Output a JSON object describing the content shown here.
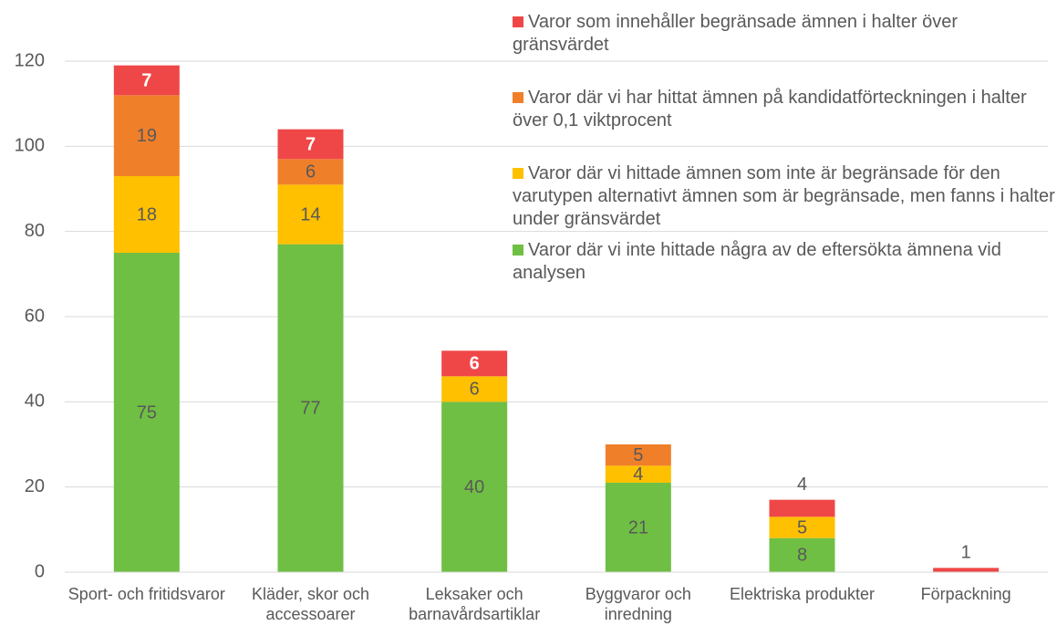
{
  "chart_data": {
    "type": "stacked_bar",
    "categories": [
      "Sport- och fritidsvaror",
      "Kläder, skor och accessoarer",
      "Leksaker och barnavårdsartiklar",
      "Byggvaror och inredning",
      "Elektriska produkter",
      "Förpackning"
    ],
    "series": [
      {
        "name": "Varor där vi inte hittade några av de eftersökta ämnena vid analysen",
        "color": "#6fbf44",
        "values": [
          75,
          77,
          40,
          21,
          8,
          null
        ]
      },
      {
        "name": "Varor där vi hittade ämnen som inte är begränsade för den varutypen alternativt ämnen som är begränsade, men fanns i halter under gränsvärdet",
        "color": "#ffc000",
        "values": [
          18,
          14,
          6,
          4,
          5,
          null
        ]
      },
      {
        "name": "Varor där vi har hittat ämnen på kandidatförteckningen i halter över 0,1 viktprocent",
        "color": "#f07f2a",
        "values": [
          19,
          6,
          null,
          5,
          null,
          null
        ]
      },
      {
        "name": "Varor som innehåller begränsade ämnen i halter över gränsvärdet",
        "color": "#ef4747",
        "values": [
          7,
          7,
          6,
          null,
          4,
          1
        ]
      }
    ],
    "ylim": [
      0,
      120
    ],
    "yticks": [
      0,
      20,
      40,
      60,
      80,
      100,
      120
    ],
    "grid": true,
    "legend": "top-right"
  }
}
